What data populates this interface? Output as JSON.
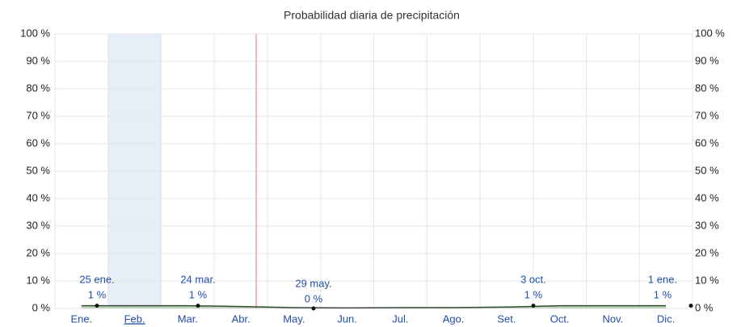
{
  "chart_data": {
    "type": "area",
    "title": "Probabilidad diaria de precipitación",
    "categories": [
      "Ene.",
      "Feb.",
      "Mar.",
      "Abr.",
      "May.",
      "Jun.",
      "Jul.",
      "Ago.",
      "Set.",
      "Oct.",
      "Nov.",
      "Dic."
    ],
    "values": [
      1,
      1,
      1,
      0.7,
      0.3,
      0.2,
      0.3,
      0.3,
      0.5,
      1,
      1,
      1
    ],
    "color": "#a8c8a0",
    "line_color": "#3a4a3a",
    "ylim": [
      0,
      100
    ],
    "yticks": [
      {
        "value": 0,
        "label": "0 %"
      },
      {
        "value": 10,
        "label": "10 %"
      },
      {
        "value": 20,
        "label": "20 %"
      },
      {
        "value": 30,
        "label": "30 %"
      },
      {
        "value": 40,
        "label": "40 %"
      },
      {
        "value": 50,
        "label": "50 %"
      },
      {
        "value": 60,
        "label": "60 %"
      },
      {
        "value": 70,
        "label": "70 %"
      },
      {
        "value": 80,
        "label": "80 %"
      },
      {
        "value": 90,
        "label": "90 %"
      },
      {
        "value": 100,
        "label": "100 %"
      }
    ],
    "grid": true,
    "annotations": [
      {
        "date": "25 ene.",
        "value": 1,
        "label": "1 %"
      },
      {
        "date": "24 mar.",
        "value": 1,
        "label": "1 %"
      },
      {
        "date": "29 may.",
        "value": 0,
        "label": "0 %"
      },
      {
        "date": "3 oct.",
        "value": 1,
        "label": "1 %"
      },
      {
        "date": "1 ene.",
        "value": 1,
        "label": "1 %"
      }
    ]
  }
}
